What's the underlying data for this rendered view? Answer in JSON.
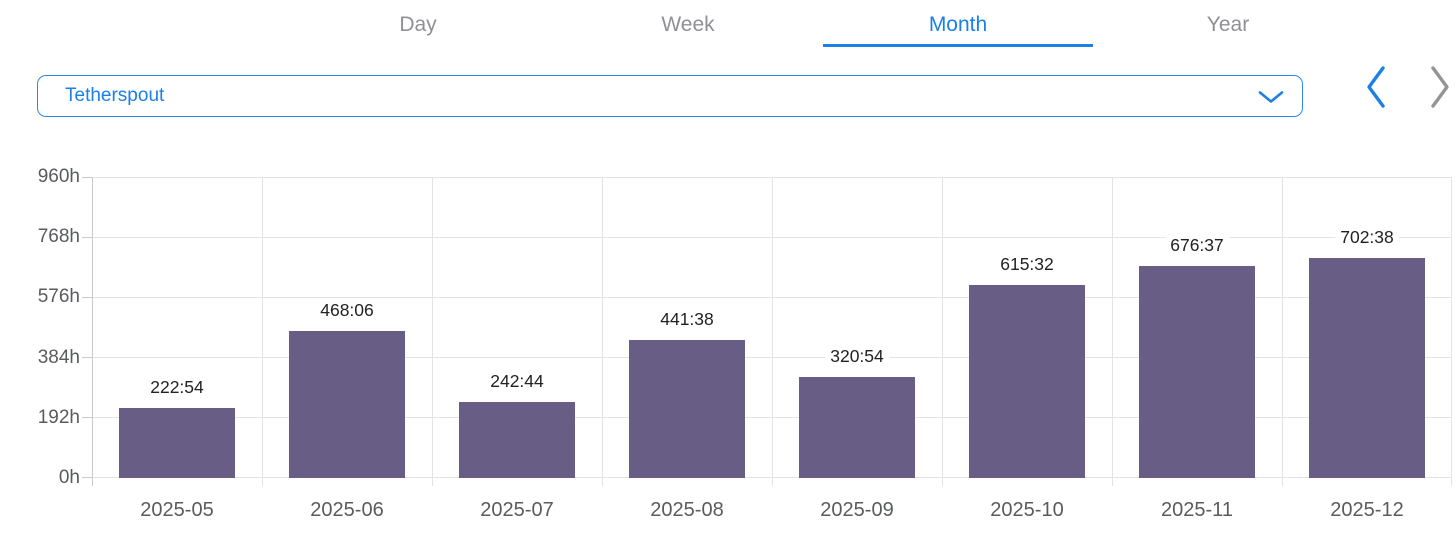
{
  "tabs": {
    "items": [
      {
        "label": "Day",
        "active": false
      },
      {
        "label": "Week",
        "active": false
      },
      {
        "label": "Month",
        "active": true
      },
      {
        "label": "Year",
        "active": false
      }
    ]
  },
  "selector": {
    "value": "Tetherspout",
    "icon": "chevron-down-icon"
  },
  "nav": {
    "prev_icon": "chevron-left-icon",
    "next_icon": "chevron-right-icon",
    "prev_enabled": true,
    "next_enabled": false
  },
  "colors": {
    "accent_blue": "#1a80e5",
    "bar_fill": "#685d85",
    "grid_line": "#e3e3e3",
    "axis_line": "#c9c9c9",
    "axis_text": "#595b5f",
    "value_text": "#222222",
    "tab_inactive": "#8f9095",
    "nav_disabled": "#949494"
  },
  "chart_data": {
    "type": "bar",
    "title": "",
    "xlabel": "",
    "ylabel": "",
    "categories": [
      "2025-05",
      "2025-06",
      "2025-07",
      "2025-08",
      "2025-09",
      "2025-10",
      "2025-11",
      "2025-12"
    ],
    "values": [
      222.9,
      468.1,
      242.73,
      441.63,
      320.9,
      615.53,
      676.62,
      702.63
    ],
    "value_labels": [
      "222:54",
      "468:06",
      "242:44",
      "441:38",
      "320:54",
      "615:32",
      "676:37",
      "702:38"
    ],
    "y_tick_values": [
      0,
      192,
      384,
      576,
      768,
      960
    ],
    "y_tick_labels": [
      "0h",
      "192h",
      "384h",
      "576h",
      "768h",
      "960h"
    ],
    "ylim": [
      0,
      960
    ],
    "grid": true,
    "legend": false
  }
}
